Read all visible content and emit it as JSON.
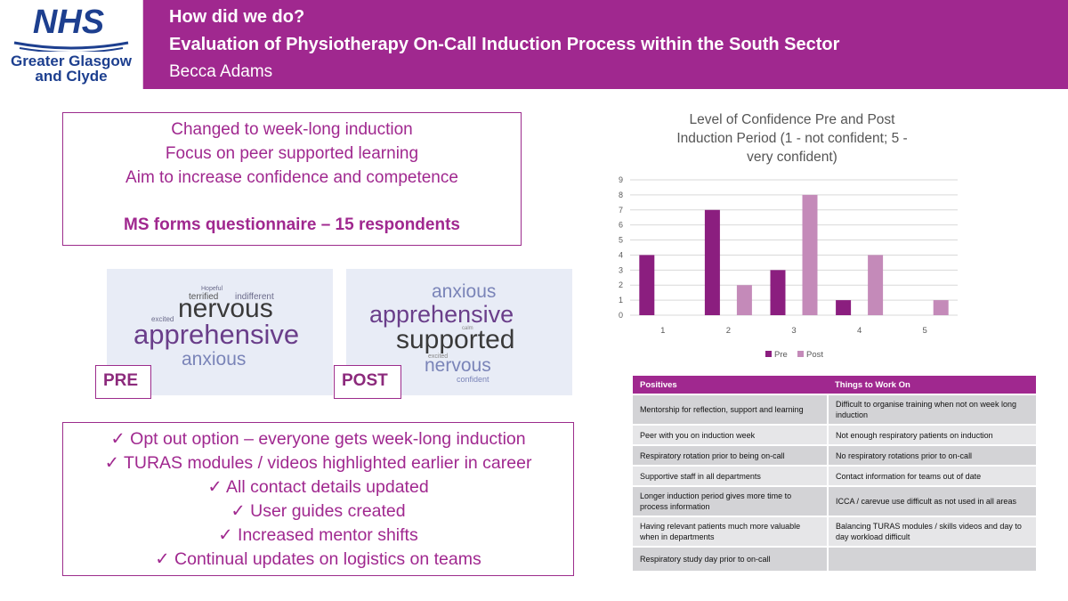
{
  "header": {
    "logo_text": "NHS",
    "logo_org_line1": "Greater Glasgow",
    "logo_org_line2": "and Clyde",
    "title_line1": "How did we do?",
    "title_line2": "Evaluation of Physiotherapy On-Call Induction Process within the South Sector",
    "author": "Becca Adams"
  },
  "intro_box": {
    "lines": [
      "Changed to week-long induction",
      "Focus on peer supported learning",
      "Aim to increase confidence and competence"
    ],
    "questionnaire": "MS forms questionnaire – 15 respondents"
  },
  "word_clouds": {
    "pre": {
      "label": "PRE",
      "words": [
        "nervous",
        "apprehensive",
        "anxious",
        "terrified",
        "indifferent",
        "excited",
        "Hopeful"
      ]
    },
    "post": {
      "label": "POST",
      "words": [
        "anxious",
        "apprehensive",
        "supported",
        "nervous",
        "confident",
        "excited",
        "calm"
      ]
    }
  },
  "outcomes": {
    "items": [
      "✓  Opt out option – everyone gets week-long induction",
      "✓  TURAS modules / videos highlighted earlier in career",
      "✓  All contact details updated",
      "✓  User guides created",
      "✓  Increased mentor shifts",
      "✓  Continual updates on logistics on teams"
    ]
  },
  "chart_data": {
    "type": "bar",
    "title_lines": [
      "Level of Confidence Pre and Post",
      "Induction Period (1 - not confident; 5 -",
      "very confident)"
    ],
    "categories": [
      "1",
      "2",
      "3",
      "4",
      "5"
    ],
    "series": [
      {
        "name": "Pre",
        "values": [
          4,
          7,
          3,
          1,
          0
        ],
        "color": "#8b1e7f"
      },
      {
        "name": "Post",
        "values": [
          0,
          2,
          8,
          4,
          1
        ],
        "color": "#c48ab9"
      }
    ],
    "ylim": [
      0,
      9
    ],
    "yticks": [
      "0",
      "1",
      "2",
      "3",
      "4",
      "5",
      "6",
      "7",
      "8",
      "9"
    ],
    "grid": true,
    "legend": "bottom"
  },
  "feedback_table": {
    "headers": [
      "Positives",
      "Things to Work On"
    ],
    "rows": [
      [
        "Mentorship for reflection, support and learning",
        "Difficult to organise training when not on week long induction"
      ],
      [
        "Peer with you on induction week",
        "Not enough respiratory patients on induction"
      ],
      [
        "Respiratory rotation prior to being on-call",
        "No respiratory rotations prior to on-call"
      ],
      [
        "Supportive staff in all departments",
        "Contact information for teams out of date"
      ],
      [
        "Longer induction period gives more time to process information",
        "ICCA / carevue use difficult as not used in all areas"
      ],
      [
        "Having relevant patients much more valuable when in departments",
        "Balancing TURAS modules / skills videos and day to day workload difficult"
      ],
      [
        "Respiratory study day prior to on-call",
        ""
      ]
    ]
  },
  "colors": {
    "brand_purple": "#a0288f",
    "nhs_blue": "#1d3f8f",
    "pre_bar": "#8b1e7f",
    "post_bar": "#c48ab9"
  }
}
